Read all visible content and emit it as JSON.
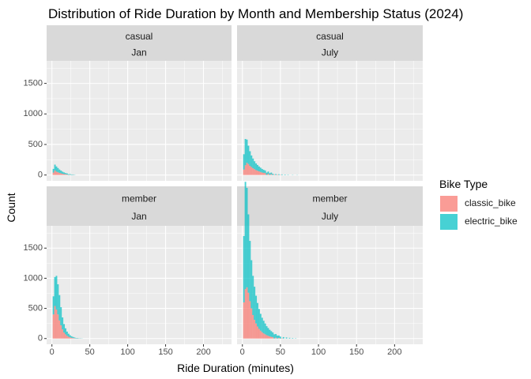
{
  "chart_data": {
    "type": "histogram",
    "title": "Distribution of Ride Duration by Month and Membership Status (2024)",
    "xlabel": "Ride Duration (minutes)",
    "ylabel": "Count",
    "xlim": [
      -7,
      237
    ],
    "ylim": [
      -95,
      1870
    ],
    "x_ticks": [
      0,
      50,
      100,
      150,
      200
    ],
    "y_ticks": [
      0,
      500,
      1000,
      1500
    ],
    "grid": true,
    "legend": {
      "title": "Bike Type",
      "position": "right",
      "entries": [
        {
          "label": "classic_bike",
          "color": "#F8766D"
        },
        {
          "label": "electric_bike",
          "color": "#00BFC4"
        }
      ]
    },
    "panels": [
      {
        "membership": "casual",
        "month": "Jan",
        "series": [
          {
            "name": "classic_bike",
            "x": [
              2,
              4,
              6,
              8,
              10,
              12,
              14,
              16,
              18,
              20,
              24,
              28
            ],
            "values": [
              40,
              75,
              55,
              45,
              35,
              28,
              20,
              15,
              12,
              8,
              5,
              3
            ]
          },
          {
            "name": "electric_bike",
            "x": [
              2,
              4,
              6,
              8,
              10,
              12,
              14,
              16,
              18,
              20,
              22,
              24,
              26,
              28,
              30
            ],
            "values": [
              60,
              95,
              85,
              70,
              55,
              45,
              35,
              28,
              20,
              18,
              12,
              10,
              8,
              6,
              4
            ]
          }
        ]
      },
      {
        "membership": "casual",
        "month": "July",
        "series": [
          {
            "name": "classic_bike",
            "x": [
              2,
              4,
              6,
              8,
              10,
              12,
              14,
              16,
              18,
              20,
              22,
              24,
              26,
              28,
              30,
              34,
              38,
              42,
              46,
              50
            ],
            "values": [
              90,
              160,
              200,
              180,
              150,
              130,
              110,
              95,
              80,
              70,
              60,
              50,
              40,
              35,
              30,
              22,
              15,
              10,
              8,
              5
            ]
          },
          {
            "name": "electric_bike",
            "x": [
              2,
              4,
              6,
              8,
              10,
              12,
              14,
              16,
              18,
              20,
              22,
              24,
              26,
              28,
              30,
              32,
              34,
              36,
              38,
              40,
              44,
              48,
              52,
              56,
              60,
              66,
              72
            ],
            "values": [
              250,
              430,
              380,
              300,
              240,
              190,
              160,
              130,
              110,
              95,
              80,
              70,
              60,
              50,
              45,
              40,
              35,
              30,
              25,
              20,
              15,
              12,
              10,
              8,
              6,
              4,
              3
            ]
          }
        ]
      },
      {
        "membership": "member",
        "month": "Jan",
        "series": [
          {
            "name": "classic_bike",
            "x": [
              2,
              4,
              6,
              8,
              10,
              12,
              14,
              16,
              18,
              20,
              22,
              24,
              26,
              28,
              30,
              34,
              38
            ],
            "values": [
              400,
              540,
              480,
              400,
              300,
              220,
              150,
              100,
              70,
              45,
              30,
              20,
              12,
              8,
              5,
              3,
              2
            ]
          },
          {
            "name": "electric_bike",
            "x": [
              2,
              4,
              6,
              8,
              10,
              12,
              14,
              16,
              18,
              20,
              22,
              24,
              26,
              28,
              30,
              32,
              34,
              36,
              38,
              40
            ],
            "values": [
              300,
              480,
              560,
              500,
              420,
              300,
              200,
              140,
              100,
              70,
              50,
              35,
              25,
              18,
              12,
              8,
              6,
              4,
              3,
              2
            ]
          }
        ]
      },
      {
        "membership": "member",
        "month": "July",
        "series": [
          {
            "name": "classic_bike",
            "x": [
              2,
              4,
              6,
              8,
              10,
              12,
              14,
              16,
              18,
              20,
              22,
              24,
              26,
              28,
              30,
              32,
              34,
              36,
              38,
              40,
              44,
              48,
              52
            ],
            "values": [
              600,
              820,
              850,
              760,
              620,
              500,
              390,
              310,
              250,
              200,
              160,
              130,
              105,
              85,
              70,
              55,
              45,
              35,
              28,
              22,
              15,
              10,
              6
            ]
          },
          {
            "name": "electric_bike",
            "x": [
              2,
              4,
              6,
              8,
              10,
              12,
              14,
              16,
              18,
              20,
              22,
              24,
              26,
              28,
              30,
              32,
              34,
              36,
              38,
              40,
              42,
              44,
              46,
              48,
              50,
              54,
              58,
              62,
              66,
              70
            ],
            "values": [
              1100,
              1780,
              1650,
              1300,
              1000,
              800,
              650,
              550,
              460,
              390,
              330,
              280,
              240,
              210,
              180,
              150,
              130,
              110,
              95,
              80,
              70,
              60,
              50,
              40,
              32,
              24,
              18,
              12,
              8,
              5
            ]
          }
        ]
      }
    ]
  }
}
